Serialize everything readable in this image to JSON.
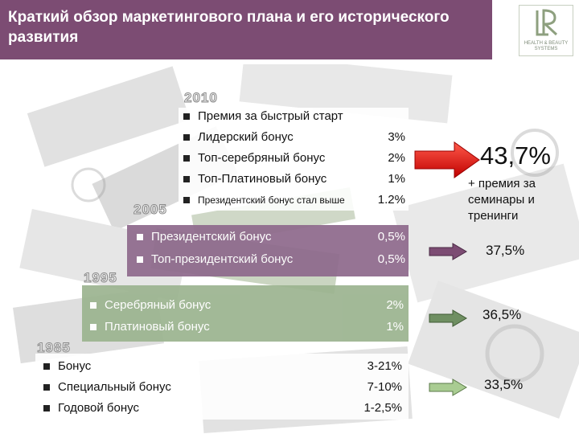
{
  "header": {
    "title": "Краткий обзор маркетингового плана и его исторического развития"
  },
  "logo": {
    "mark": "LR",
    "line1": "HEALTH & BEAUTY",
    "line2": "SYSTEMS"
  },
  "colors": {
    "header": "#7c4c73",
    "panel_2005": "#8f6a8c",
    "panel_1995": "#9bb38f",
    "arrow_2010": "#e01010",
    "arrow_2005": "#7c4c73",
    "arrow_1995": "#6f8f62",
    "arrow_1985": "#a9cc92"
  },
  "tiers": [
    {
      "year": "2010",
      "items": [
        {
          "label": "Премия за быстрый старт",
          "value": ""
        },
        {
          "label": "Лидерский бонус",
          "value": "3%"
        },
        {
          "label": "Топ-серебряный бонус",
          "value": "2%"
        },
        {
          "label": "Топ-Платиновый бонус",
          "value": "1%"
        },
        {
          "label": "Президентский бонус стал выше",
          "value": "1.2%"
        }
      ],
      "total": "43,7%",
      "note": "+ премия за семинары и тренинги"
    },
    {
      "year": "2005",
      "items": [
        {
          "label": "Президентский бонус",
          "value": "0,5%"
        },
        {
          "label": "Топ-президентский бонус",
          "value": "0,5%"
        }
      ],
      "total": "37,5%"
    },
    {
      "year": "1995",
      "items": [
        {
          "label": "Серебряный бонус",
          "value": "2%"
        },
        {
          "label": "Платиновый бонус",
          "value": "1%"
        }
      ],
      "total": "36,5%"
    },
    {
      "year": "1985",
      "items": [
        {
          "label": "Бонус",
          "value": "3-21%"
        },
        {
          "label": "Специальный бонус",
          "value": "7-10%"
        },
        {
          "label": "Годовой бонус",
          "value": "1-2,5%"
        }
      ],
      "total": "33,5%"
    }
  ]
}
